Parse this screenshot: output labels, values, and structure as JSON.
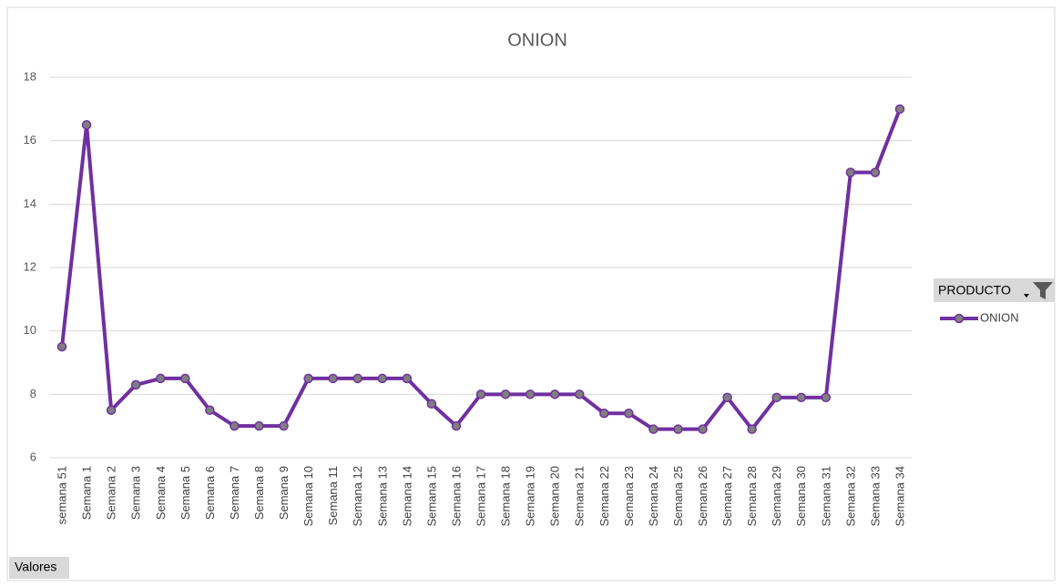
{
  "chart_data": {
    "type": "line",
    "title": "ONION",
    "categories": [
      "semana 51",
      "Semana 1",
      "Semana 2",
      "Semana 3",
      "Semana 4",
      "Semana 5",
      "Semana 6",
      "Semana 7",
      "Semana 8",
      "Semana 9",
      "Semana 10",
      "Semana 11",
      "Semana 12",
      "Semana 13",
      "Semana 14",
      "Semana 15",
      "Semana 16",
      "Semana 17",
      "Semana 18",
      "Semana 19",
      "Semana 20",
      "Semana 21",
      "Semana 22",
      "Semana 23",
      "Semana 24",
      "Semana 25",
      "Semana 26",
      "Semana 27",
      "Semana 28",
      "Semana 29",
      "Semana 30",
      "Semana 31",
      "Semana 32",
      "Semana 33",
      "Semana 34"
    ],
    "series": [
      {
        "name": "ONION",
        "color": "#7030a0",
        "marker_color": "#7f7f7f",
        "values": [
          9.5,
          16.5,
          7.5,
          8.3,
          8.5,
          8.5,
          7.5,
          7,
          7,
          7,
          8.5,
          8.5,
          8.5,
          8.5,
          8.5,
          7.7,
          7,
          8,
          8,
          8,
          8,
          8,
          7.4,
          7.4,
          6.9,
          6.9,
          6.9,
          7.9,
          6.9,
          7.9,
          7.9,
          7.9,
          15,
          15,
          17
        ]
      }
    ],
    "ylim": [
      6,
      18
    ],
    "yticks": [
      6,
      8,
      10,
      12,
      14,
      16,
      18
    ],
    "grid": true,
    "legend_title": "PRODUCTO",
    "legend_position": "right"
  },
  "field_buttons": {
    "values": "Valores"
  }
}
